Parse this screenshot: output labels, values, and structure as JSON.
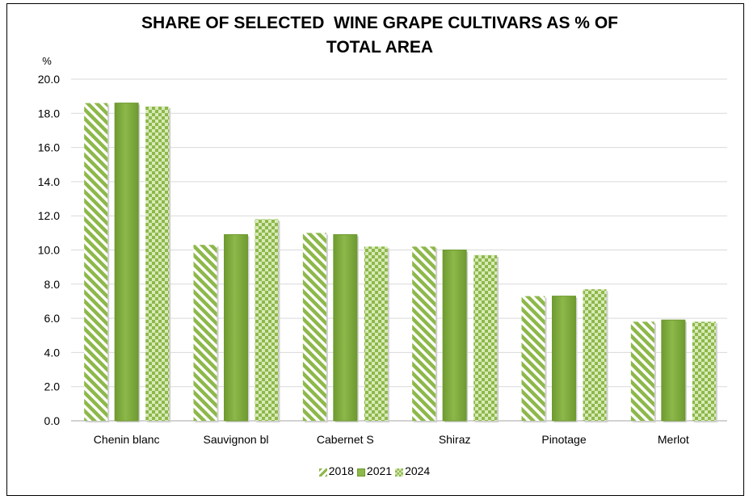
{
  "chart_data": {
    "type": "bar",
    "title": "SHARE OF SELECTED  WINE GRAPE CULTIVARS AS % OF\nTOTAL AREA",
    "ylabel": "%",
    "xlabel": "",
    "ylim": [
      0,
      20
    ],
    "ytick_step": 2,
    "ytick_labels": [
      "0.0",
      "2.0",
      "4.0",
      "6.0",
      "8.0",
      "10.0",
      "12.0",
      "14.0",
      "16.0",
      "18.0",
      "20.0"
    ],
    "grid": true,
    "legend_position": "bottom",
    "categories": [
      "Chenin blanc",
      "Sauvignon bl",
      "Cabernet S",
      "Shiraz",
      "Pinotage",
      "Merlot"
    ],
    "series": [
      {
        "name": "2018",
        "pattern": "diagonal-stripes",
        "values": [
          18.6,
          10.3,
          11.0,
          10.2,
          7.3,
          5.8
        ]
      },
      {
        "name": "2021",
        "pattern": "solid",
        "values": [
          18.6,
          10.9,
          10.9,
          10.0,
          7.3,
          5.9
        ]
      },
      {
        "name": "2024",
        "pattern": "checker",
        "values": [
          18.4,
          11.8,
          10.2,
          9.7,
          7.7,
          5.8
        ]
      }
    ],
    "colors": {
      "bar_green": "#8db84a",
      "bar_green_dark": "#6e9a30",
      "pattern_light": "#d8eab8",
      "grid": "#d9d9d9",
      "axis": "#a6a6a6"
    }
  }
}
